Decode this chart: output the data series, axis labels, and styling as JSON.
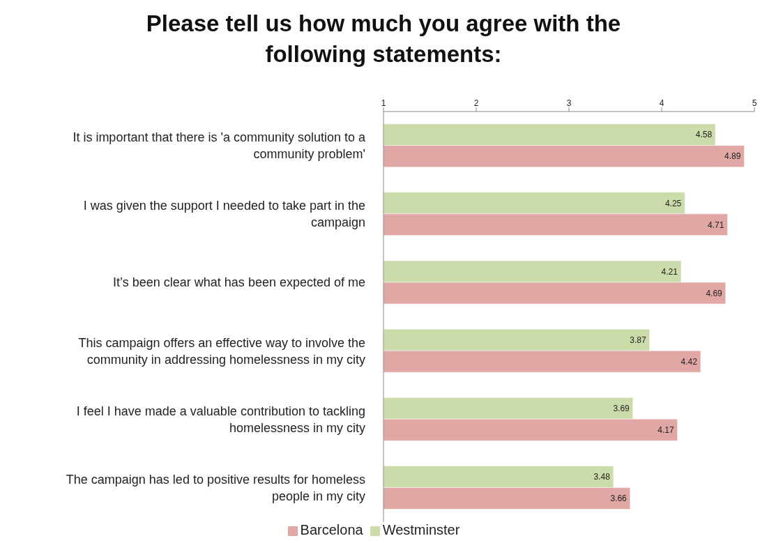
{
  "chart_data": {
    "type": "bar",
    "orientation": "horizontal",
    "title": "Please tell us how much you agree with the following statements:",
    "categories": [
      "It is important that there is 'a community solution to a community problem'",
      "I was given the support I needed to take part in the campaign",
      "It’s been clear what has been expected of me",
      "This campaign offers an effective way to involve the community in addressing homelessness in my city",
      "I feel I have made a valuable contribution to tackling homelessness in my city",
      "The campaign has led to positive results for homeless people in my city"
    ],
    "series": [
      {
        "name": "Westminster",
        "color": "#cbdcaa",
        "values": [
          4.58,
          4.25,
          4.21,
          3.87,
          3.69,
          3.48
        ]
      },
      {
        "name": "Barcelona",
        "color": "#e0a7a5",
        "values": [
          4.89,
          4.71,
          4.69,
          4.42,
          4.17,
          3.66
        ]
      }
    ],
    "xlim": [
      1,
      5
    ],
    "xticks": [
      1,
      2,
      3,
      4,
      5
    ],
    "data_labels": true,
    "grid": false,
    "legend": "bottom"
  }
}
